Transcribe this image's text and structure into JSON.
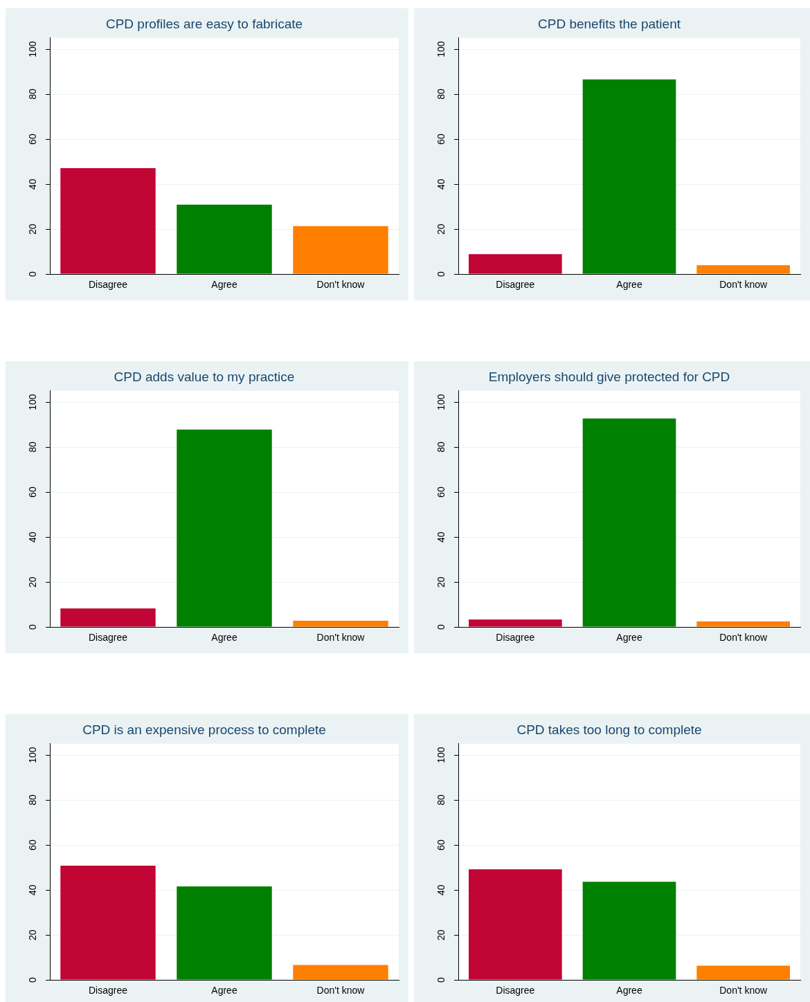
{
  "chart_data": [
    {
      "type": "bar",
      "title": "CPD profiles are easy to fabricate",
      "categories": [
        "Disagree",
        "Agree",
        "Don't know"
      ],
      "values": [
        47.4,
        31.2,
        21.7
      ],
      "colors": [
        "#c10534",
        "#008000",
        "#ff7f00"
      ],
      "ylim": [
        0,
        105
      ],
      "yticks": [
        0,
        20,
        40,
        60,
        80,
        100
      ],
      "grid": "y"
    },
    {
      "type": "bar",
      "title": "CPD benefits the patient",
      "categories": [
        "Disagree",
        "Agree",
        "Don't know"
      ],
      "values": [
        9.2,
        86.9,
        4.3
      ],
      "colors": [
        "#c10534",
        "#008000",
        "#ff7f00"
      ],
      "ylim": [
        0,
        105
      ],
      "yticks": [
        0,
        20,
        40,
        60,
        80,
        100
      ],
      "grid": "y"
    },
    {
      "type": "bar",
      "title": "CPD adds value to my practice",
      "categories": [
        "Disagree",
        "Agree",
        "Don't know"
      ],
      "values": [
        8.6,
        88.1,
        3.1
      ],
      "colors": [
        "#c10534",
        "#008000",
        "#ff7f00"
      ],
      "ylim": [
        0,
        105
      ],
      "yticks": [
        0,
        20,
        40,
        60,
        80,
        100
      ],
      "grid": "y"
    },
    {
      "type": "bar",
      "title": "Employers should give protected for CPD",
      "categories": [
        "Disagree",
        "Agree",
        "Don't know"
      ],
      "values": [
        3.7,
        93.0,
        2.8
      ],
      "colors": [
        "#c10534",
        "#008000",
        "#ff7f00"
      ],
      "ylim": [
        0,
        105
      ],
      "yticks": [
        0,
        20,
        40,
        60,
        80,
        100
      ],
      "grid": "y"
    },
    {
      "type": "bar",
      "title": "CPD is an expensive process to complete",
      "categories": [
        "Disagree",
        "Agree",
        "Don't know"
      ],
      "values": [
        51.1,
        41.9,
        7.0
      ],
      "colors": [
        "#c10534",
        "#008000",
        "#ff7f00"
      ],
      "ylim": [
        0,
        105
      ],
      "yticks": [
        0,
        20,
        40,
        60,
        80,
        100
      ],
      "grid": "y"
    },
    {
      "type": "bar",
      "title": "CPD takes too long to complete",
      "categories": [
        "Disagree",
        "Agree",
        "Don't know"
      ],
      "values": [
        49.5,
        44.0,
        6.7
      ],
      "colors": [
        "#c10534",
        "#008000",
        "#ff7f00"
      ],
      "ylim": [
        0,
        105
      ],
      "yticks": [
        0,
        20,
        40,
        60,
        80,
        100
      ],
      "grid": "y"
    }
  ]
}
